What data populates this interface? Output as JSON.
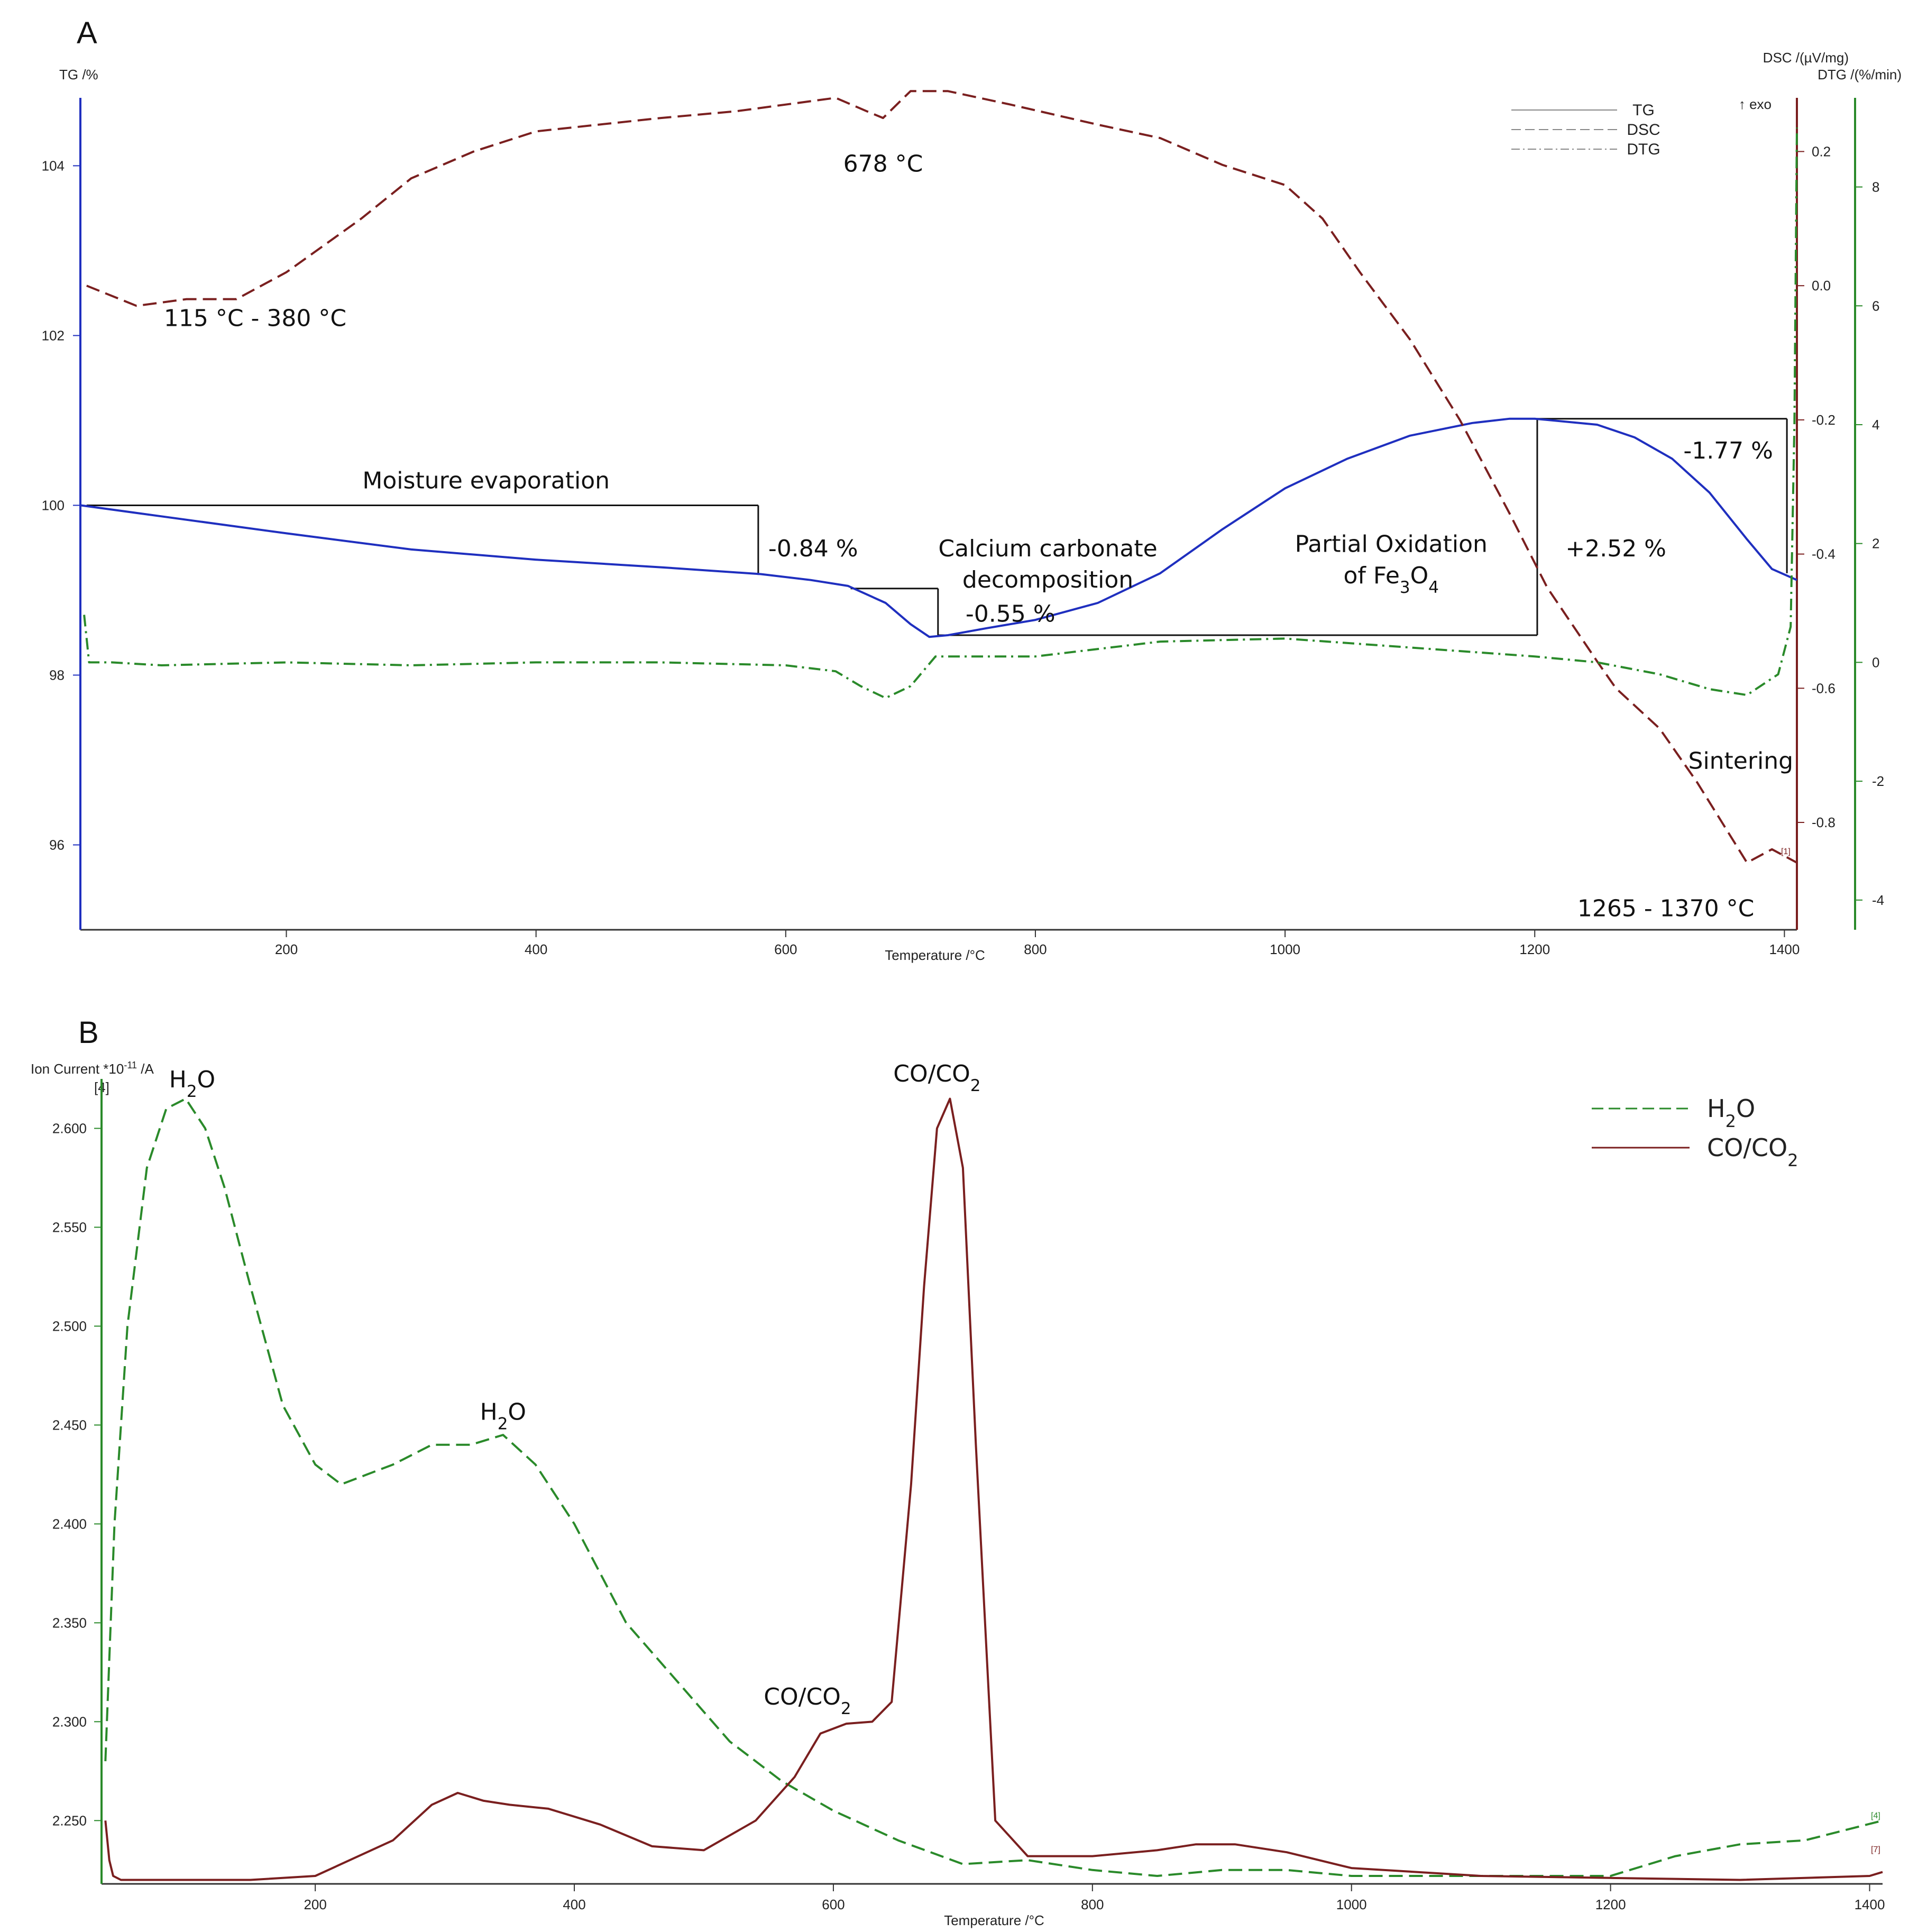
{
  "chart_data": [
    {
      "panel_label": "A",
      "type": "line",
      "xlabel": "Temperature /°C",
      "xlim": [
        35,
        1410
      ],
      "xticks": [
        200,
        400,
        600,
        800,
        1000,
        1200,
        1400
      ],
      "axes": {
        "tg": {
          "label": "TG /%",
          "ylim": [
            95.0,
            104.8
          ],
          "ticks": [
            96,
            98,
            100,
            102,
            104
          ],
          "color": "#1f2fbf"
        },
        "dsc": {
          "label": "DSC /(µV/mg)",
          "exo": "↑ exo",
          "ylim": [
            -0.96,
            0.28
          ],
          "ticks": [
            -0.8,
            -0.6,
            -0.4,
            -0.2,
            0.0,
            0.2
          ],
          "color": "#7a1f1f"
        },
        "dtg": {
          "label": "DTG /(%/min)",
          "ylim": [
            -4.5,
            9.5
          ],
          "ticks": [
            -4,
            -2,
            0,
            2,
            4,
            6,
            8
          ],
          "color": "#2a8a2a"
        }
      },
      "legend": {
        "position": "top-right",
        "entries": [
          "TG",
          "DSC",
          "DTG"
        ]
      },
      "series": [
        {
          "name": "TG",
          "axis": "tg",
          "style": "solid",
          "color": "#1f2fbf",
          "x": [
            35,
            100,
            200,
            300,
            400,
            500,
            580,
            620,
            650,
            680,
            700,
            715,
            730,
            760,
            800,
            850,
            900,
            950,
            1000,
            1050,
            1100,
            1150,
            1180,
            1200,
            1250,
            1280,
            1310,
            1340,
            1370,
            1390,
            1410
          ],
          "y": [
            100.0,
            99.87,
            99.67,
            99.48,
            99.36,
            99.27,
            99.19,
            99.12,
            99.05,
            98.85,
            98.6,
            98.45,
            98.47,
            98.55,
            98.65,
            98.85,
            99.2,
            99.72,
            100.2,
            100.55,
            100.82,
            100.97,
            101.02,
            101.02,
            100.95,
            100.8,
            100.55,
            100.15,
            99.6,
            99.25,
            99.12
          ]
        },
        {
          "name": "DSC",
          "axis": "dsc",
          "style": "dash",
          "color": "#7a1f1f",
          "x": [
            40,
            80,
            120,
            160,
            200,
            260,
            300,
            350,
            400,
            450,
            500,
            560,
            600,
            640,
            665,
            678,
            700,
            730,
            780,
            850,
            900,
            950,
            1000,
            1030,
            1060,
            1100,
            1140,
            1180,
            1210,
            1250,
            1265,
            1300,
            1330,
            1350,
            1370,
            1390,
            1410
          ],
          "y": [
            0.0,
            -0.03,
            -0.02,
            -0.02,
            0.02,
            0.1,
            0.16,
            0.2,
            0.23,
            0.24,
            0.25,
            0.26,
            0.27,
            0.28,
            0.26,
            0.25,
            0.29,
            0.29,
            0.27,
            0.24,
            0.22,
            0.18,
            0.15,
            0.1,
            0.02,
            -0.08,
            -0.2,
            -0.34,
            -0.45,
            -0.56,
            -0.6,
            -0.66,
            -0.74,
            -0.8,
            -0.86,
            -0.84,
            -0.86
          ]
        },
        {
          "name": "DTG",
          "axis": "dtg",
          "style": "dashdot",
          "color": "#2a8a2a",
          "x": [
            38,
            42,
            60,
            100,
            200,
            300,
            400,
            500,
            600,
            640,
            660,
            680,
            700,
            720,
            760,
            800,
            900,
            1000,
            1100,
            1200,
            1250,
            1300,
            1340,
            1370,
            1395,
            1405,
            1408,
            1410
          ],
          "y": [
            0.8,
            0.0,
            0.0,
            -0.05,
            0.0,
            -0.05,
            0.0,
            0.0,
            -0.05,
            -0.15,
            -0.4,
            -0.6,
            -0.4,
            0.1,
            0.1,
            0.1,
            0.35,
            0.4,
            0.25,
            0.1,
            0.0,
            -0.2,
            -0.45,
            -0.55,
            -0.2,
            0.6,
            4.0,
            9.0
          ]
        }
      ],
      "annotations": [
        {
          "text": "678 °C",
          "x": 678,
          "axis": "dsc",
          "y": 0.17
        },
        {
          "text": "115 °C - 380 °C",
          "x": 175,
          "axis": "dsc",
          "y": -0.06
        },
        {
          "text": "Moisture evaporation",
          "x": 360,
          "axis": "tg",
          "y": 100.2
        },
        {
          "text": "-0.84 %",
          "x": 622,
          "axis": "tg",
          "y": 99.4
        },
        {
          "text": "Calcium carbonate",
          "x": 810,
          "axis": "tg",
          "y": 99.4
        },
        {
          "text": "decomposition",
          "x": 810,
          "axis": "tg",
          "y": 99.03
        },
        {
          "text": "-0.55 %",
          "x": 780,
          "axis": "tg",
          "y": 98.63
        },
        {
          "text": "Partial Oxidation",
          "x": 1085,
          "axis": "tg",
          "y": 99.45
        },
        {
          "text": "of Fe₃O₄",
          "x": 1085,
          "axis": "tg",
          "y": 99.08
        },
        {
          "text": "+2.52 %",
          "x": 1265,
          "axis": "tg",
          "y": 99.4
        },
        {
          "text": "-1.77 %",
          "x": 1355,
          "axis": "tg",
          "y": 100.55
        },
        {
          "text": "Sintering",
          "x": 1365,
          "axis": "dsc",
          "y": -0.72
        },
        {
          "text": "1265 - 1370 °C",
          "x": 1305,
          "axis": "dsc",
          "y": -0.94
        }
      ],
      "step_marks": [
        {
          "from_x": 40,
          "to_x": 578,
          "y_top": 100.0,
          "y_bottom": 99.18
        },
        {
          "from_x": 652,
          "to_x": 722,
          "y_top": 99.02,
          "y_bottom": 98.47
        },
        {
          "from_x": 722,
          "to_x": 1202,
          "y_top": 101.02,
          "y_bottom": 98.47
        },
        {
          "from_x": 1202,
          "to_x": 1402,
          "y_top": 101.02,
          "y_bottom": 99.2
        }
      ]
    },
    {
      "panel_label": "B",
      "type": "line",
      "xlabel": "Temperature /°C",
      "ylabel": "Ion Current *10⁻¹¹ /A",
      "y_marker": "[4]",
      "xlim": [
        35,
        1410
      ],
      "ylim": [
        2.218,
        2.625
      ],
      "xticks": [
        200,
        400,
        600,
        800,
        1000,
        1200,
        1400
      ],
      "yticks": [
        2.25,
        2.3,
        2.35,
        2.4,
        2.45,
        2.5,
        2.55,
        2.6
      ],
      "legend": {
        "position": "top-right",
        "entries": [
          "H₂O",
          "CO/CO₂"
        ]
      },
      "series": [
        {
          "name": "H₂O",
          "style": "dash",
          "color": "#2a8a2a",
          "x": [
            38,
            45,
            55,
            70,
            85,
            100,
            115,
            130,
            150,
            175,
            200,
            220,
            240,
            260,
            290,
            320,
            345,
            370,
            400,
            440,
            480,
            520,
            560,
            600,
            650,
            700,
            750,
            800,
            850,
            900,
            950,
            1000,
            1100,
            1200,
            1250,
            1300,
            1350,
            1410
          ],
          "y": [
            2.28,
            2.4,
            2.5,
            2.58,
            2.61,
            2.615,
            2.6,
            2.57,
            2.52,
            2.46,
            2.43,
            2.42,
            2.425,
            2.43,
            2.44,
            2.44,
            2.445,
            2.43,
            2.4,
            2.35,
            2.32,
            2.29,
            2.27,
            2.255,
            2.24,
            2.228,
            2.23,
            2.225,
            2.222,
            2.225,
            2.225,
            2.222,
            2.222,
            2.222,
            2.232,
            2.238,
            2.24,
            2.25
          ]
        },
        {
          "name": "CO/CO₂",
          "style": "solid",
          "color": "#7a1f1f",
          "x": [
            38,
            41,
            44,
            50,
            80,
            150,
            200,
            260,
            290,
            310,
            330,
            350,
            380,
            420,
            460,
            500,
            540,
            570,
            590,
            610,
            630,
            645,
            660,
            670,
            680,
            690,
            700,
            710,
            725,
            750,
            800,
            850,
            880,
            910,
            950,
            1000,
            1100,
            1200,
            1300,
            1400,
            1410
          ],
          "y": [
            2.25,
            2.23,
            2.222,
            2.22,
            2.22,
            2.22,
            2.222,
            2.24,
            2.258,
            2.264,
            2.26,
            2.258,
            2.256,
            2.248,
            2.237,
            2.235,
            2.25,
            2.272,
            2.294,
            2.299,
            2.3,
            2.31,
            2.42,
            2.52,
            2.6,
            2.615,
            2.58,
            2.44,
            2.25,
            2.232,
            2.232,
            2.235,
            2.238,
            2.238,
            2.234,
            2.226,
            2.222,
            2.221,
            2.22,
            2.222,
            2.224
          ]
        }
      ],
      "annotations": [
        {
          "text": "H₂O",
          "x": 105,
          "y": 2.618
        },
        {
          "text": "H₂O",
          "x": 345,
          "y": 2.45
        },
        {
          "text": "CO/CO₂",
          "x": 680,
          "y": 2.621
        },
        {
          "text": "CO/CO₂",
          "x": 580,
          "y": 2.306
        }
      ]
    }
  ]
}
